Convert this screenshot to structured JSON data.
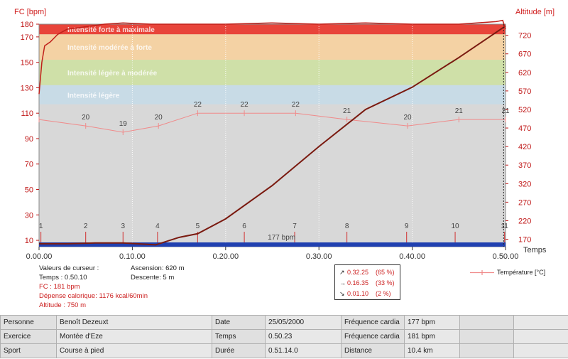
{
  "chart_data": {
    "type": "line",
    "ylabel_left": "FC [bpm]",
    "ylabel_right": "Altitude [m]",
    "xlabel": "Temps",
    "x_ticks": [
      "0.00.00",
      "0.10.00",
      "0.20.00",
      "0.30.00",
      "0.40.00",
      "0.50.00"
    ],
    "x_range_minutes": [
      0,
      50
    ],
    "y_left_ticks": [
      10,
      30,
      50,
      70,
      90,
      110,
      130,
      150,
      170,
      180
    ],
    "y_left_range": [
      5,
      180
    ],
    "y_right_ticks": [
      170,
      220,
      270,
      320,
      370,
      420,
      470,
      520,
      570,
      620,
      670,
      720
    ],
    "y_right_range": [
      150,
      750
    ],
    "zones": [
      {
        "label": "Intensité forte à maximale",
        "from": 172,
        "to": 188,
        "color": "#e8443a"
      },
      {
        "label": "Intensité modérée à forte",
        "from": 152,
        "to": 172,
        "color": "#f4d2a4"
      },
      {
        "label": "Intensité légère à modérée",
        "from": 132,
        "to": 152,
        "color": "#cfe0a8"
      },
      {
        "label": "Intensité légère",
        "from": 117,
        "to": 132,
        "color": "#c8dbe6"
      }
    ],
    "series": [
      {
        "name": "FC",
        "color": "#c0201a",
        "x": [
          0,
          0.3,
          0.6,
          1.2,
          2,
          3,
          5,
          7,
          9,
          12,
          15,
          20,
          25,
          30,
          35,
          40,
          45,
          49,
          49.7,
          50
        ],
        "values": [
          125,
          150,
          163,
          166,
          172,
          176,
          178,
          180,
          181,
          180,
          180,
          180,
          181,
          180,
          181,
          180,
          180,
          182,
          183,
          176
        ]
      },
      {
        "name": "Altitude",
        "color": "#7a1a10",
        "x": [
          0,
          3,
          6,
          9,
          12.5,
          15,
          17,
          20,
          25,
          30,
          35,
          40,
          45,
          50
        ],
        "values": [
          158,
          158,
          160,
          160,
          155,
          175,
          185,
          225,
          315,
          420,
          520,
          580,
          660,
          745
        ]
      },
      {
        "name": "Température [°C]",
        "color": "#f08a8a",
        "x": [
          0,
          5,
          9,
          12.8,
          17,
          22,
          27.5,
          33,
          39.5,
          45,
          50
        ],
        "values": [
          21,
          20,
          19,
          20,
          22,
          22,
          22,
          21,
          20,
          21,
          21
        ],
        "labels": [
          "",
          "20",
          "19",
          "20",
          "22",
          "22",
          "22",
          "21",
          "20",
          "21",
          "21"
        ]
      }
    ],
    "lap_markers": [
      {
        "x": 0.2,
        "label": "1"
      },
      {
        "x": 5,
        "label": "2"
      },
      {
        "x": 9,
        "label": "3"
      },
      {
        "x": 12.7,
        "label": "4"
      },
      {
        "x": 17,
        "label": "5"
      },
      {
        "x": 22,
        "label": "6"
      },
      {
        "x": 27.4,
        "label": "7"
      },
      {
        "x": 33,
        "label": "8"
      },
      {
        "x": 39.4,
        "label": "9"
      },
      {
        "x": 44.6,
        "label": "10"
      },
      {
        "x": 49.9,
        "label": "11"
      }
    ],
    "annotation": "177 bpm"
  },
  "cursor": {
    "heading": "Valeurs de curseur :",
    "time": "Temps : 0.50.10",
    "fc": "FC : 181 bpm",
    "energy": "Dépense calorique: 1176 kcal/60min",
    "altitude": "Altitude : 750 m",
    "ascent": "Ascension: 620 m",
    "descent": "Descente: 5 m"
  },
  "slopes": [
    {
      "arrow": "↗",
      "time": "0.32.25",
      "pct": "(65 %)"
    },
    {
      "arrow": "→",
      "time": "0.16.35",
      "pct": "(33 %)"
    },
    {
      "arrow": "↘",
      "time": "0.01.10",
      "pct": "(2 %)"
    }
  ],
  "legend": {
    "temperature": "Température [°C]"
  },
  "info_table": [
    [
      "Personne",
      "Benoît Dezeuxt",
      "Date",
      "25/05/2000",
      "Fréquence cardia",
      "177 bpm",
      "",
      ""
    ],
    [
      "Exercice",
      "Montée d'Eze",
      "Temps",
      "0.50.23",
      "Fréquence cardia",
      "181 bpm",
      "",
      ""
    ],
    [
      "Sport",
      "Course à pied",
      "Durée",
      "0.51.14.0",
      "Distance",
      "10.4 km",
      "",
      ""
    ]
  ]
}
